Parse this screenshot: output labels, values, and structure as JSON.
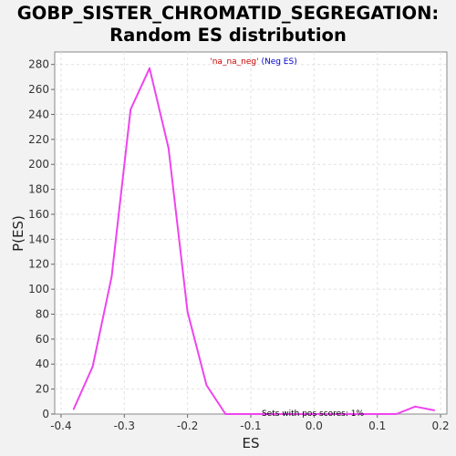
{
  "chart_data": {
    "type": "line",
    "title_line1": "GOBP_SISTER_CHROMATID_SEGREGATION:",
    "title_line2": "Random ES distribution",
    "xlabel": "ES",
    "ylabel": "P(ES)",
    "xlim": [
      -0.41,
      0.21
    ],
    "ylim": [
      0,
      290
    ],
    "x_ticks": [
      -0.4,
      -0.3,
      -0.2,
      -0.1,
      0.0,
      0.1,
      0.2
    ],
    "x_tick_labels": [
      "-0.4",
      "-0.3",
      "-0.2",
      "-0.1",
      "0.0",
      "0.1",
      "0.2"
    ],
    "y_ticks": [
      0,
      20,
      40,
      60,
      80,
      100,
      120,
      140,
      160,
      180,
      200,
      220,
      240,
      260,
      280
    ],
    "y_tick_labels": [
      "0",
      "20",
      "40",
      "60",
      "80",
      "100",
      "120",
      "140",
      "160",
      "180",
      "200",
      "220",
      "240",
      "260",
      "280"
    ],
    "grid": true,
    "legend": {
      "name_part": "'na_na_neg'",
      "suffix_part": " (Neg ES)",
      "name_color": "#cc0000",
      "suffix_color": "#0000cc",
      "placement": "top-center"
    },
    "annotation": "Sets with pos scores: 1%",
    "series": [
      {
        "color": "#ee44ee",
        "x": [
          -0.38,
          -0.35,
          -0.32,
          -0.29,
          -0.26,
          -0.23,
          -0.2,
          -0.17,
          -0.14,
          -0.11,
          -0.08,
          -0.05,
          -0.02,
          0.01,
          0.04,
          0.07,
          0.1,
          0.13,
          0.16,
          0.19
        ],
        "y": [
          4,
          38,
          110,
          244,
          277,
          213,
          82,
          23,
          0,
          0,
          0,
          0,
          0,
          0,
          0,
          0,
          0,
          0,
          6,
          3
        ]
      }
    ]
  }
}
